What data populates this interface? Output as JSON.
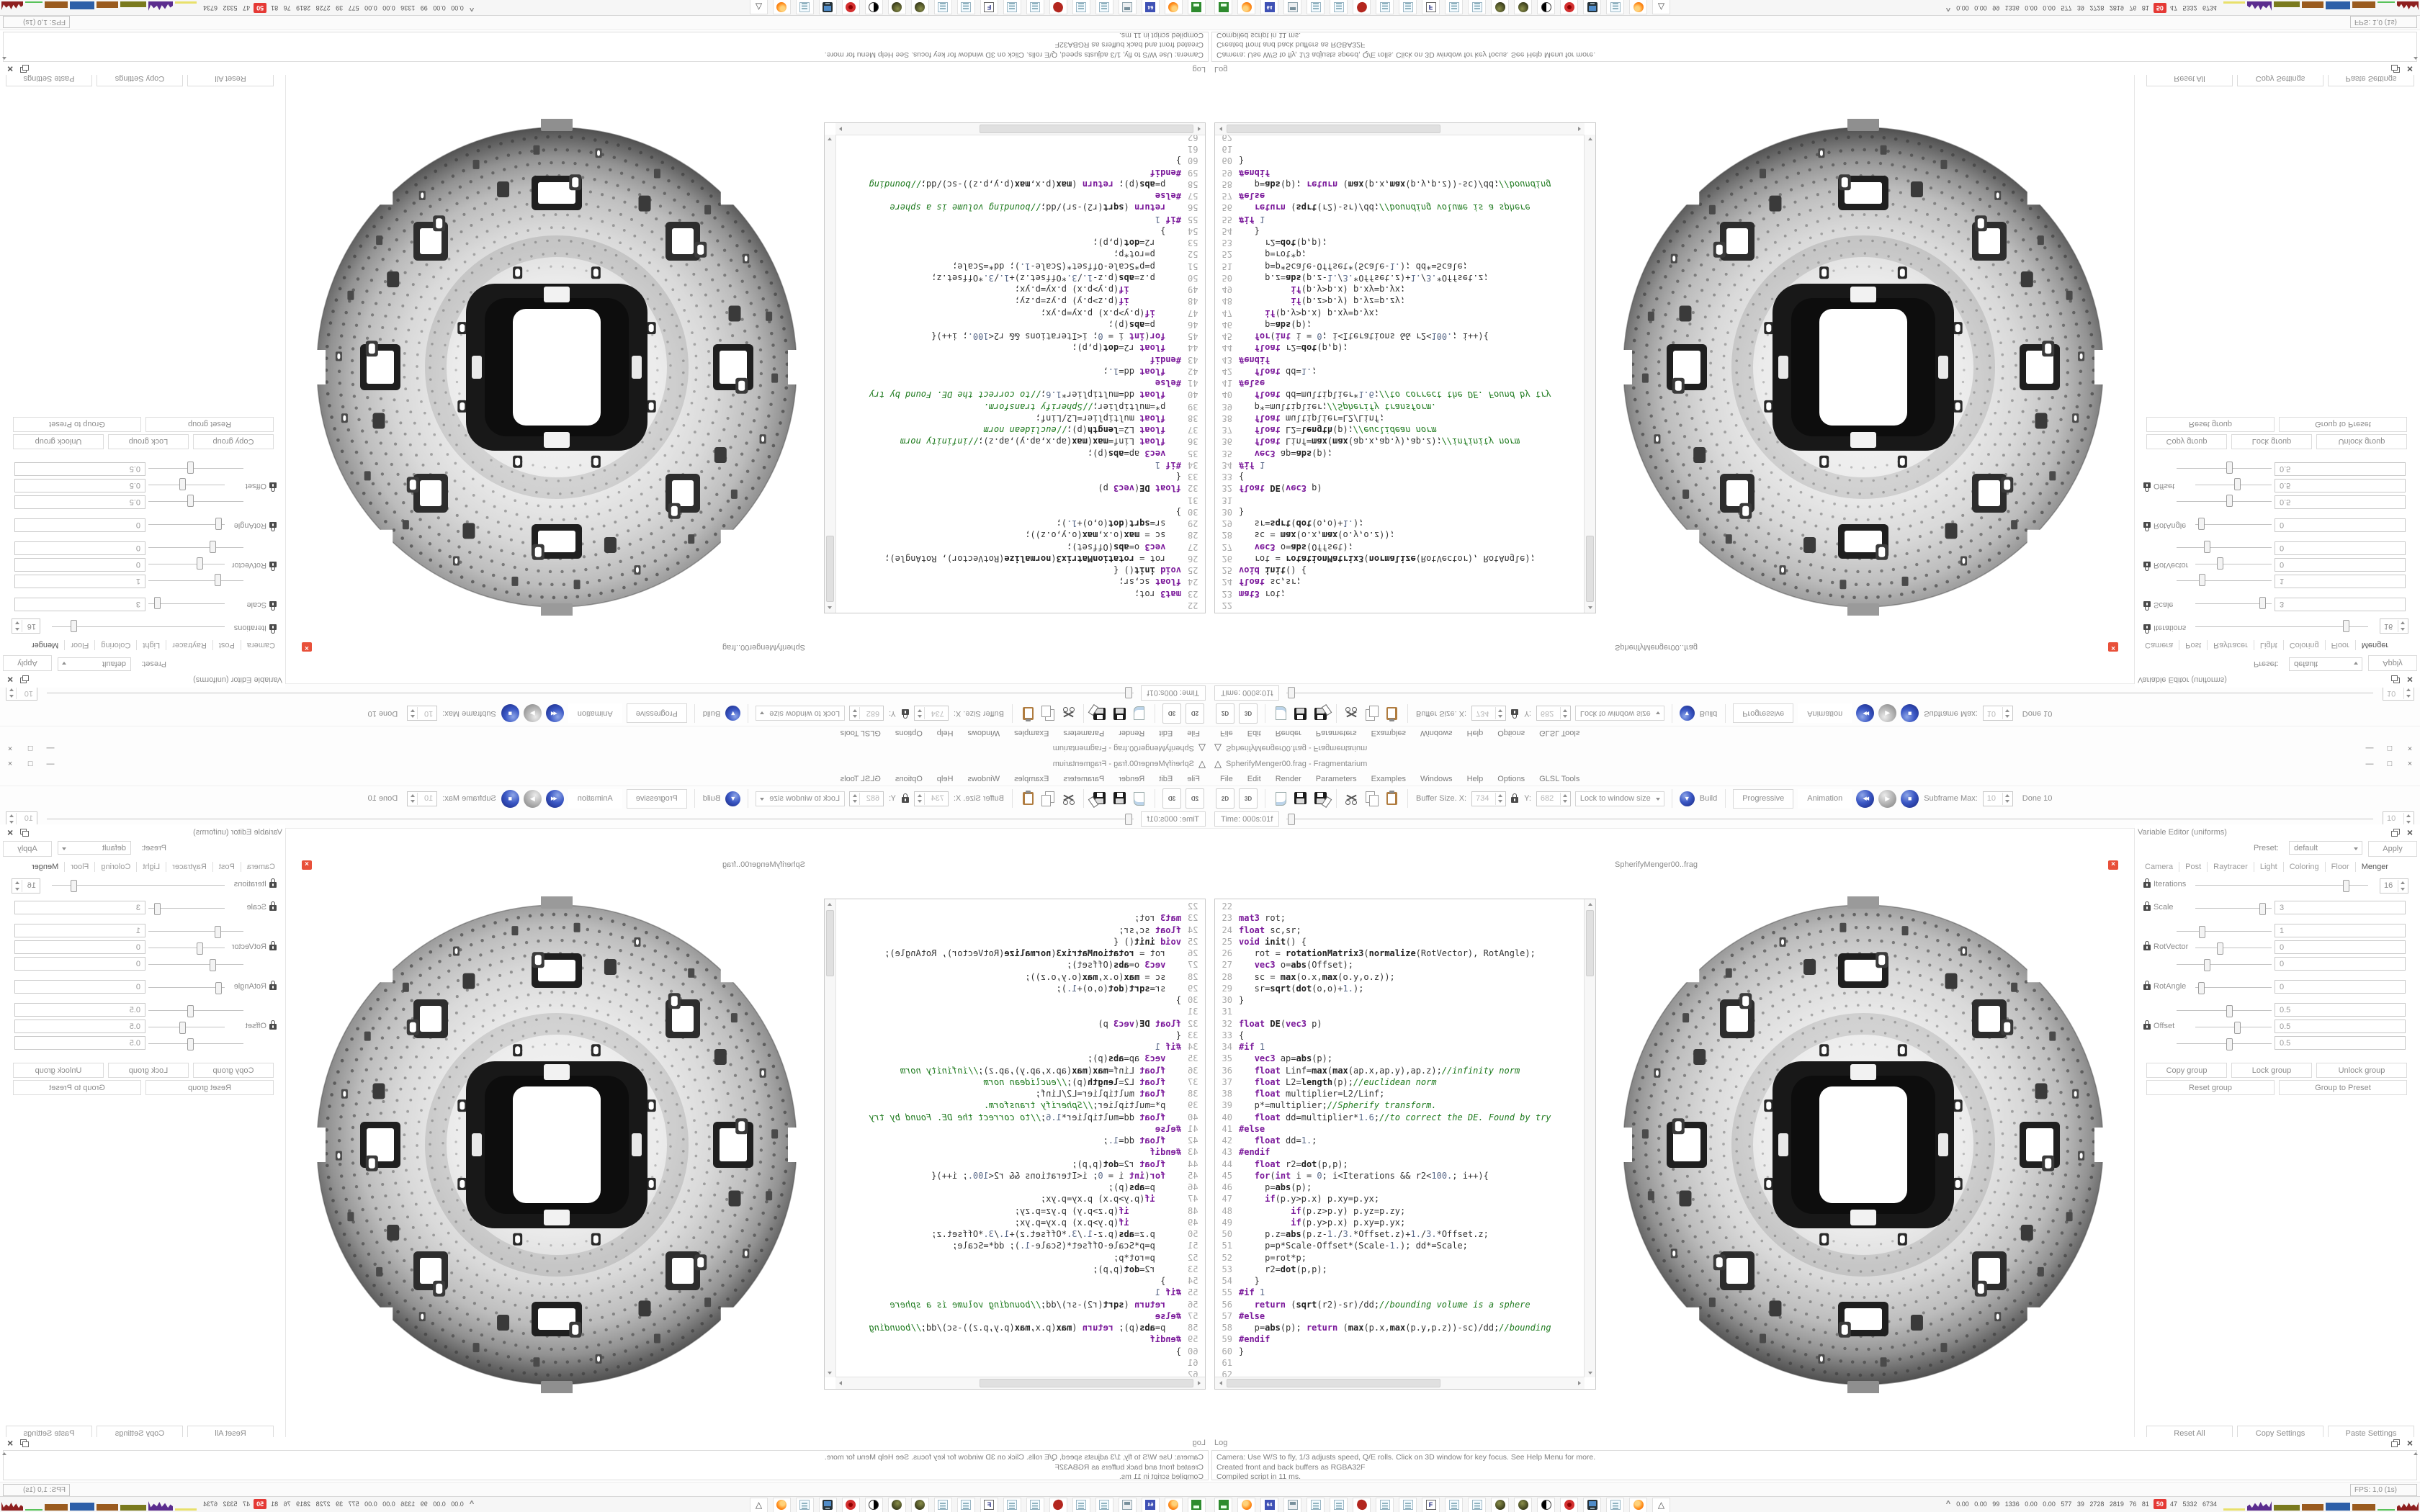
{
  "window": {
    "title": "SpherifyMenger00.frag - Fragmentarium",
    "minimize": "—",
    "maximize": "□",
    "close": "×"
  },
  "menus": [
    "File",
    "Edit",
    "Render",
    "Parameters",
    "Examples",
    "Windows",
    "Help",
    "Options",
    "GLSL Tools"
  ],
  "toolbar": {
    "btn_2d": "2D",
    "btn_3d": "3D",
    "buffer_label": "Buffer Size. X:",
    "buffer_x": "734",
    "buffer_y_label": "Y:",
    "buffer_y": "682",
    "lock_dropdown": "Lock to window size",
    "build": "Build",
    "build_glyph": "▼",
    "rewind_glyph": "◀◀",
    "play_glyph": "▶",
    "stop_glyph": "■",
    "progressive": "Progressive",
    "animation": "Animation",
    "subframe_label": "Subframe Max:",
    "subframe_max": "10",
    "done": "Done 10"
  },
  "timebar": {
    "label": "Time: 000s:01f",
    "spin": "10"
  },
  "preview": {
    "tab": "SpherifyMenger00..frag",
    "close_glyph": "×"
  },
  "code": {
    "first_line": 22,
    "lines": [
      "",
      "mat3 rot;",
      "float sc,sr;",
      "void init() {",
      "   rot = rotationMatrix3(normalize(RotVector), RotAngle);",
      "   vec3 o=abs(Offset);",
      "   sc = max(o.x,max(o.y,o.z));",
      "   sr=sqrt(dot(o,o)+1.);",
      "}",
      "",
      "float DE(vec3 p)",
      "{",
      "#if 1",
      "   vec3 ap=abs(p);",
      "   float Linf=max(max(ap.x,ap.y),ap.z);//infinity norm",
      "   float L2=length(p);//euclidean norm",
      "   float multiplier=L2/Linf;",
      "   p*=multiplier;//Spherify transform.",
      "   float dd=multiplier*1.6;//to correct the DE. Found by try",
      "#else",
      "   float dd=1.;",
      "#endif",
      "   float r2=dot(p,p);",
      "   for(int i = 0; i<Iterations && r2<100.; i++){",
      "     p=abs(p);",
      "     if(p.y>p.x) p.xy=p.yx;",
      "          if(p.z>p.y) p.yz=p.zy;",
      "          if(p.y>p.x) p.xy=p.yx;",
      "     p.z=abs(p.z-1./3.*Offset.z)+1./3.*Offset.z;",
      "     p=p*Scale-Offset*(Scale-1.); dd*=Scale;",
      "     p=rot*p;",
      "     r2=dot(p,p);",
      "   }",
      "#if 1",
      "   return (sqrt(r2)-sr)/dd;//bounding volume is a sphere",
      "#else",
      "   p=abs(p); return (max(p.x,max(p.y,p.z))-sc)/dd;//bounding",
      "#endif",
      "}",
      "",
      ""
    ]
  },
  "panel": {
    "title": "Variable Editor (uniforms)",
    "preset_label": "Preset:",
    "preset_value": "default",
    "apply": "Apply",
    "tabs": [
      "Camera",
      "Post",
      "Raytracer",
      "Light",
      "Coloring",
      "Floor",
      "Menger"
    ],
    "active_tab": "Menger",
    "params": [
      {
        "label": "Iterations",
        "type": "spin",
        "rows": [
          {
            "t": 0.88,
            "v": "16"
          }
        ]
      },
      {
        "label": "Scale",
        "rows": [
          {
            "t": 0.9,
            "v": "3"
          }
        ]
      },
      {
        "label": "RotVector",
        "rows": [
          {
            "t": 0.25,
            "v": "1"
          },
          {
            "t": 0.3,
            "v": "0"
          },
          {
            "t": 0.3,
            "v": "0"
          }
        ]
      },
      {
        "label": "RotAngle",
        "rows": [
          {
            "t": 0.04,
            "v": "0"
          }
        ]
      },
      {
        "label": "Offset",
        "rows": [
          {
            "t": 0.55,
            "v": "0.5"
          },
          {
            "t": 0.55,
            "v": "0.5"
          },
          {
            "t": 0.55,
            "v": "0.5"
          }
        ]
      }
    ],
    "group_buttons": [
      "Copy group",
      "Lock group",
      "Unlock group"
    ],
    "group_buttons2": [
      "Reset group",
      "Group to Preset"
    ],
    "bottom_buttons": [
      "Reset All",
      "Copy Settings",
      "Paste Settings"
    ]
  },
  "log": {
    "title": "Log",
    "lines": [
      "Camera: Use W/S to fly, 1/3 adjusts speed, Q/E rolls. Click on 3D window for key focus. See Help Menu for more.",
      "Created front and back buffers as RGBA32F",
      "Compiled script in 11 ms."
    ]
  },
  "statusbar": {
    "fps": "FPS: 1,0 (1s)"
  },
  "taskbar": {
    "icons": [
      {
        "type": "greenbox"
      },
      {
        "type": "firefox"
      },
      {
        "type": "floppy64",
        "label": "64"
      },
      {
        "type": "printer"
      },
      {
        "type": "notepad"
      },
      {
        "type": "notepad"
      },
      {
        "type": "redsplat"
      },
      {
        "type": "notepad"
      },
      {
        "type": "notepad"
      },
      {
        "type": "docf",
        "label": "F"
      },
      {
        "type": "notepad"
      },
      {
        "type": "notepad"
      },
      {
        "type": "sphere"
      },
      {
        "type": "sphere"
      },
      {
        "type": "swirl"
      },
      {
        "type": "redring"
      },
      {
        "type": "monitor"
      },
      {
        "type": "notepad"
      },
      {
        "type": "firefox"
      },
      {
        "type": "pyramid",
        "label": "△"
      }
    ],
    "tray": {
      "chevron": "^",
      "numbers": "0.00 0.00 99 1336 0.00 0.00 577 39 2728 2819 76 81",
      "badge": "50",
      "numbers2": "47 5332 6734",
      "graphs": [
        {
          "color": "#e8e06a",
          "w": 30,
          "h": 3,
          "shape": "bar"
        },
        {
          "color": "#5b2d8e",
          "w": 34,
          "h": 13,
          "shape": "spiky"
        },
        {
          "color": "#7a7a1e",
          "w": 36,
          "h": 8,
          "shape": "bar"
        },
        {
          "color": "#9a5b1f",
          "w": 30,
          "h": 9,
          "shape": "bar"
        },
        {
          "color": "#2d5fa8",
          "w": 34,
          "h": 11,
          "shape": "bar"
        },
        {
          "color": "#9a5b1f",
          "w": 32,
          "h": 9,
          "shape": "bar"
        },
        {
          "color": "#58c25a",
          "w": 24,
          "h": 2,
          "shape": "bar"
        },
        {
          "color": "#8e1f1f",
          "w": 30,
          "h": 12,
          "shape": "spiky"
        }
      ]
    }
  },
  "colors": {
    "keyword_purple": "#7a189a",
    "comment_green": "#1e7a1e",
    "tab_close_red": "#e8503a",
    "tray_badge_red": "#e53935",
    "build_blue": "#2b46b8"
  }
}
